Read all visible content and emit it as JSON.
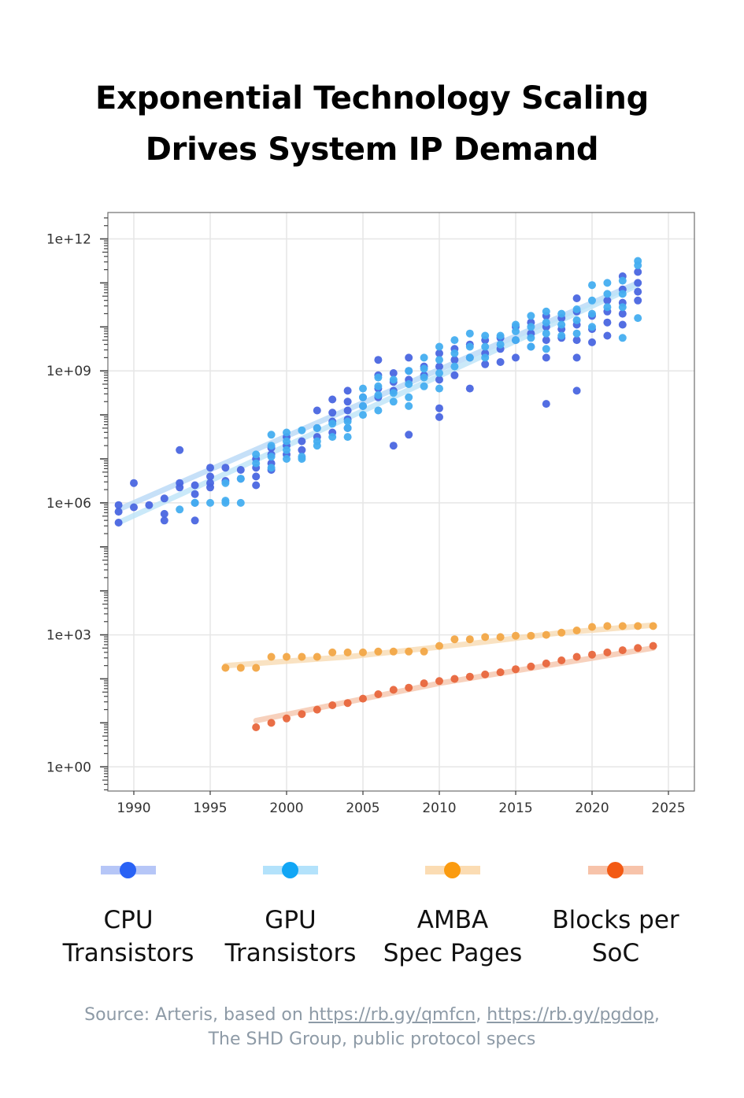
{
  "title": {
    "line1": "Exponential Technology Scaling",
    "line2": "Drives System IP Demand"
  },
  "legend": [
    {
      "name": "CPU Transistors",
      "line1": "CPU",
      "line2": "Transistors",
      "color": "#2962f5",
      "line_color": "#b6c6f7"
    },
    {
      "name": "GPU Transistors",
      "line1": "GPU",
      "line2": "Transistors",
      "color": "#11a6f5",
      "line_color": "#b3e2fb"
    },
    {
      "name": "AMBA Spec Pages",
      "line1": "AMBA",
      "line2": "Spec Pages",
      "color": "#fb9b10",
      "line_color": "#fbdcb3"
    },
    {
      "name": "Blocks per SoC",
      "line1": "Blocks per",
      "line2": "SoC",
      "color": "#f35a14",
      "line_color": "#f7c3aa"
    }
  ],
  "source": {
    "prefix": "Source: Arteris, based on",
    "link1": "https://rb.gy/qmfcn",
    "separator": ",",
    "link2": "https://rb.gy/pgdop",
    "suffix": ",",
    "line2": "The SHD Group, public protocol specs"
  },
  "chart_data": {
    "type": "scatter",
    "title": "Exponential Technology Scaling Drives System IP Demand",
    "xlabel": "",
    "ylabel": "",
    "y_scale": "log10",
    "xlim": [
      1988.3,
      2026.7
    ],
    "ylim_log10": [
      -0.55,
      12.6
    ],
    "x_ticks": [
      1990,
      1995,
      2000,
      2005,
      2010,
      2015,
      2020,
      2025
    ],
    "x_tick_labels": [
      "1990",
      "1995",
      "2000",
      "2005",
      "2010",
      "2015",
      "2020",
      "2025"
    ],
    "y_ticks_log10": [
      0,
      3,
      6,
      9,
      12
    ],
    "y_tick_labels": [
      "1e+00",
      "1e+03",
      "1e+06",
      "1e+09",
      "1e+12"
    ],
    "grid": true,
    "legend_position": "bottom",
    "series": [
      {
        "name": "CPU Transistors",
        "color": "#4a66e0",
        "trend_color": "#b8d8f6",
        "trend_log10": [
          [
            1989,
            5.85
          ],
          [
            2023,
            11.0
          ]
        ],
        "points_log10": [
          [
            1989,
            5.95
          ],
          [
            1989,
            5.8
          ],
          [
            1989,
            5.55
          ],
          [
            1990,
            5.9
          ],
          [
            1990,
            6.45
          ],
          [
            1991,
            5.95
          ],
          [
            1992,
            6.1
          ],
          [
            1992,
            5.75
          ],
          [
            1992,
            5.6
          ],
          [
            1993,
            6.45
          ],
          [
            1993,
            6.35
          ],
          [
            1993,
            7.2
          ],
          [
            1994,
            6.4
          ],
          [
            1994,
            6.2
          ],
          [
            1994,
            6.0
          ],
          [
            1994,
            5.6
          ],
          [
            1995,
            6.8
          ],
          [
            1995,
            6.6
          ],
          [
            1995,
            6.45
          ],
          [
            1995,
            6.35
          ],
          [
            1996,
            6.8
          ],
          [
            1996,
            6.5
          ],
          [
            1997,
            6.75
          ],
          [
            1997,
            6.55
          ],
          [
            1998,
            7.0
          ],
          [
            1998,
            6.8
          ],
          [
            1998,
            6.6
          ],
          [
            1998,
            6.4
          ],
          [
            1999,
            7.25
          ],
          [
            1999,
            7.1
          ],
          [
            1999,
            6.9
          ],
          [
            1999,
            6.75
          ],
          [
            2000,
            7.5
          ],
          [
            2000,
            7.3
          ],
          [
            2000,
            7.1
          ],
          [
            2001,
            7.4
          ],
          [
            2001,
            7.2
          ],
          [
            2002,
            8.1
          ],
          [
            2002,
            7.7
          ],
          [
            2002,
            7.5
          ],
          [
            2003,
            8.35
          ],
          [
            2003,
            8.05
          ],
          [
            2003,
            7.85
          ],
          [
            2003,
            7.6
          ],
          [
            2004,
            8.55
          ],
          [
            2004,
            8.3
          ],
          [
            2004,
            8.1
          ],
          [
            2004,
            7.9
          ],
          [
            2004,
            7.7
          ],
          [
            2005,
            8.4
          ],
          [
            2005,
            8.2
          ],
          [
            2006,
            9.25
          ],
          [
            2006,
            8.9
          ],
          [
            2006,
            8.6
          ],
          [
            2006,
            8.4
          ],
          [
            2007,
            8.95
          ],
          [
            2007,
            8.75
          ],
          [
            2007,
            8.55
          ],
          [
            2007,
            7.3
          ],
          [
            2008,
            9.3
          ],
          [
            2008,
            9.0
          ],
          [
            2008,
            8.8
          ],
          [
            2008,
            7.55
          ],
          [
            2009,
            9.1
          ],
          [
            2009,
            8.9
          ],
          [
            2010,
            9.4
          ],
          [
            2010,
            9.1
          ],
          [
            2010,
            8.8
          ],
          [
            2010,
            8.15
          ],
          [
            2010,
            7.95
          ],
          [
            2011,
            9.5
          ],
          [
            2011,
            9.25
          ],
          [
            2011,
            8.9
          ],
          [
            2012,
            9.6
          ],
          [
            2012,
            9.3
          ],
          [
            2012,
            8.6
          ],
          [
            2013,
            9.7
          ],
          [
            2013,
            9.4
          ],
          [
            2013,
            9.15
          ],
          [
            2014,
            9.75
          ],
          [
            2014,
            9.5
          ],
          [
            2014,
            9.2
          ],
          [
            2015,
            10.0
          ],
          [
            2015,
            9.7
          ],
          [
            2015,
            9.3
          ],
          [
            2016,
            10.1
          ],
          [
            2016,
            9.85
          ],
          [
            2016,
            9.55
          ],
          [
            2017,
            10.25
          ],
          [
            2017,
            10.0
          ],
          [
            2017,
            9.7
          ],
          [
            2017,
            9.3
          ],
          [
            2017,
            8.25
          ],
          [
            2018,
            10.2
          ],
          [
            2018,
            9.95
          ],
          [
            2018,
            9.75
          ],
          [
            2019,
            10.65
          ],
          [
            2019,
            10.35
          ],
          [
            2019,
            10.05
          ],
          [
            2019,
            9.7
          ],
          [
            2019,
            9.3
          ],
          [
            2019,
            8.55
          ],
          [
            2020,
            10.25
          ],
          [
            2020,
            9.95
          ],
          [
            2020,
            9.65
          ],
          [
            2021,
            10.6
          ],
          [
            2021,
            10.35
          ],
          [
            2021,
            10.1
          ],
          [
            2021,
            9.8
          ],
          [
            2022,
            11.15
          ],
          [
            2022,
            10.85
          ],
          [
            2022,
            10.55
          ],
          [
            2022,
            10.3
          ],
          [
            2022,
            10.05
          ],
          [
            2023,
            11.25
          ],
          [
            2023,
            11.0
          ],
          [
            2023,
            10.8
          ],
          [
            2023,
            10.6
          ]
        ]
      },
      {
        "name": "GPU Transistors",
        "color": "#45aef0",
        "trend_color": "#bde3f8",
        "trend_log10": [
          [
            1989,
            5.55
          ],
          [
            2023,
            10.95
          ]
        ],
        "points_log10": [
          [
            1993,
            5.85
          ],
          [
            1994,
            6.0
          ],
          [
            1995,
            6.0
          ],
          [
            1996,
            6.05
          ],
          [
            1996,
            6.0
          ],
          [
            1996,
            6.45
          ],
          [
            1997,
            6.0
          ],
          [
            1997,
            6.55
          ],
          [
            1998,
            6.9
          ],
          [
            1998,
            7.1
          ],
          [
            1999,
            7.55
          ],
          [
            1999,
            7.3
          ],
          [
            1999,
            7.05
          ],
          [
            1999,
            6.8
          ],
          [
            2000,
            7.6
          ],
          [
            2000,
            7.4
          ],
          [
            2000,
            7.2
          ],
          [
            2000,
            7.0
          ],
          [
            2001,
            7.65
          ],
          [
            2001,
            7.05
          ],
          [
            2001,
            7.0
          ],
          [
            2002,
            7.7
          ],
          [
            2002,
            7.4
          ],
          [
            2002,
            7.3
          ],
          [
            2003,
            7.8
          ],
          [
            2003,
            7.5
          ],
          [
            2004,
            7.85
          ],
          [
            2004,
            7.7
          ],
          [
            2004,
            7.5
          ],
          [
            2005,
            8.6
          ],
          [
            2005,
            8.4
          ],
          [
            2005,
            8.2
          ],
          [
            2005,
            8.0
          ],
          [
            2006,
            8.85
          ],
          [
            2006,
            8.65
          ],
          [
            2006,
            8.45
          ],
          [
            2006,
            8.1
          ],
          [
            2007,
            8.8
          ],
          [
            2007,
            8.5
          ],
          [
            2007,
            8.3
          ],
          [
            2008,
            9.0
          ],
          [
            2008,
            8.7
          ],
          [
            2008,
            8.4
          ],
          [
            2008,
            8.2
          ],
          [
            2009,
            9.3
          ],
          [
            2009,
            9.05
          ],
          [
            2009,
            8.85
          ],
          [
            2009,
            8.65
          ],
          [
            2010,
            9.55
          ],
          [
            2010,
            9.25
          ],
          [
            2010,
            8.95
          ],
          [
            2010,
            8.6
          ],
          [
            2011,
            9.7
          ],
          [
            2011,
            9.4
          ],
          [
            2011,
            9.1
          ],
          [
            2012,
            9.85
          ],
          [
            2012,
            9.55
          ],
          [
            2012,
            9.3
          ],
          [
            2013,
            9.8
          ],
          [
            2013,
            9.55
          ],
          [
            2013,
            9.3
          ],
          [
            2014,
            9.8
          ],
          [
            2014,
            9.6
          ],
          [
            2015,
            10.05
          ],
          [
            2015,
            9.9
          ],
          [
            2015,
            9.7
          ],
          [
            2016,
            10.25
          ],
          [
            2016,
            10.0
          ],
          [
            2016,
            9.75
          ],
          [
            2016,
            9.55
          ],
          [
            2017,
            10.35
          ],
          [
            2017,
            10.1
          ],
          [
            2017,
            9.85
          ],
          [
            2017,
            9.5
          ],
          [
            2018,
            10.3
          ],
          [
            2018,
            10.05
          ],
          [
            2018,
            9.8
          ],
          [
            2019,
            10.4
          ],
          [
            2019,
            10.15
          ],
          [
            2019,
            9.85
          ],
          [
            2020,
            10.95
          ],
          [
            2020,
            10.6
          ],
          [
            2020,
            10.3
          ],
          [
            2020,
            10.0
          ],
          [
            2021,
            11.0
          ],
          [
            2021,
            10.75
          ],
          [
            2021,
            10.45
          ],
          [
            2022,
            11.05
          ],
          [
            2022,
            10.75
          ],
          [
            2022,
            10.45
          ],
          [
            2022,
            9.75
          ],
          [
            2023,
            11.5
          ],
          [
            2023,
            11.4
          ],
          [
            2023,
            10.2
          ]
        ]
      },
      {
        "name": "AMBA Spec Pages",
        "color": "#f2a646",
        "trend_color": "#f8dbb3",
        "trend_log10": [
          [
            1996,
            2.3
          ],
          [
            2004,
            2.5
          ],
          [
            2012,
            2.8
          ],
          [
            2018,
            3.05
          ],
          [
            2024,
            3.22
          ]
        ],
        "points_log10": [
          [
            1996,
            2.25
          ],
          [
            1997,
            2.25
          ],
          [
            1998,
            2.25
          ],
          [
            1999,
            2.5
          ],
          [
            2000,
            2.5
          ],
          [
            2001,
            2.5
          ],
          [
            2002,
            2.5
          ],
          [
            2003,
            2.6
          ],
          [
            2004,
            2.6
          ],
          [
            2005,
            2.6
          ],
          [
            2006,
            2.62
          ],
          [
            2007,
            2.62
          ],
          [
            2008,
            2.62
          ],
          [
            2009,
            2.62
          ],
          [
            2010,
            2.75
          ],
          [
            2011,
            2.9
          ],
          [
            2012,
            2.9
          ],
          [
            2013,
            2.95
          ],
          [
            2014,
            2.95
          ],
          [
            2015,
            2.98
          ],
          [
            2016,
            2.98
          ],
          [
            2017,
            3.0
          ],
          [
            2018,
            3.05
          ],
          [
            2019,
            3.1
          ],
          [
            2020,
            3.18
          ],
          [
            2021,
            3.2
          ],
          [
            2022,
            3.2
          ],
          [
            2023,
            3.2
          ],
          [
            2024,
            3.2
          ]
        ]
      },
      {
        "name": "Blocks per SoC",
        "color": "#e8663c",
        "trend_color": "#f5c6ad",
        "trend_log10": [
          [
            1998,
            1.05
          ],
          [
            2010,
            1.9
          ],
          [
            2024,
            2.7
          ]
        ],
        "points_log10": [
          [
            1998,
            0.9
          ],
          [
            1999,
            1.0
          ],
          [
            2000,
            1.1
          ],
          [
            2001,
            1.2
          ],
          [
            2002,
            1.3
          ],
          [
            2003,
            1.4
          ],
          [
            2004,
            1.45
          ],
          [
            2005,
            1.55
          ],
          [
            2006,
            1.65
          ],
          [
            2007,
            1.75
          ],
          [
            2008,
            1.8
          ],
          [
            2009,
            1.9
          ],
          [
            2010,
            1.95
          ],
          [
            2011,
            2.0
          ],
          [
            2012,
            2.05
          ],
          [
            2013,
            2.1
          ],
          [
            2014,
            2.15
          ],
          [
            2015,
            2.22
          ],
          [
            2016,
            2.28
          ],
          [
            2017,
            2.35
          ],
          [
            2018,
            2.42
          ],
          [
            2019,
            2.5
          ],
          [
            2020,
            2.55
          ],
          [
            2021,
            2.6
          ],
          [
            2022,
            2.65
          ],
          [
            2023,
            2.7
          ],
          [
            2024,
            2.75
          ]
        ]
      }
    ]
  }
}
